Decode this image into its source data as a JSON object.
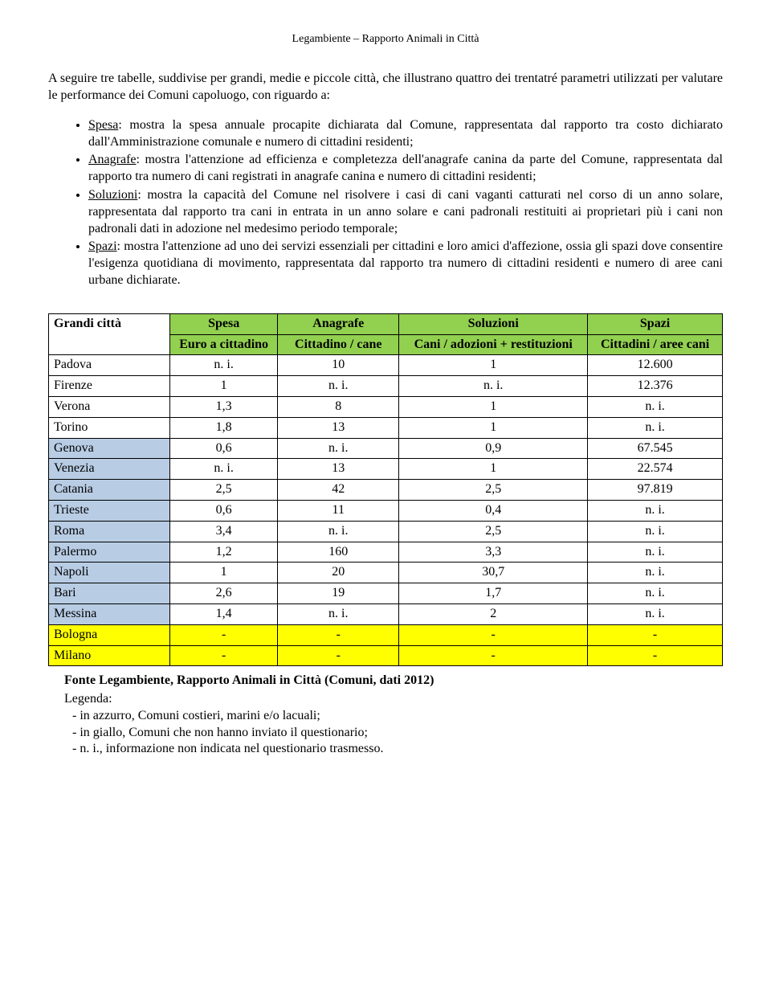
{
  "header": "Legambiente – Rapporto Animali in Città",
  "intro": "A seguire tre tabelle, suddivise per grandi, medie e piccole città, che illustrano quattro dei trentatré parametri utilizzati per valutare le performance dei Comuni capoluogo, con riguardo a:",
  "bullets": [
    {
      "term": "Spesa",
      "text": ": mostra la spesa annuale procapite dichiarata dal Comune, rappresentata dal rapporto tra costo dichiarato dall'Amministrazione comunale e numero di cittadini residenti;"
    },
    {
      "term": "Anagrafe",
      "text": ": mostra l'attenzione ad efficienza e completezza dell'anagrafe canina da parte del Comune, rappresentata dal rapporto tra numero di cani registrati in anagrafe canina e numero di cittadini residenti;"
    },
    {
      "term": "Soluzioni",
      "text": ": mostra la capacità del Comune nel risolvere i casi di cani vaganti catturati nel corso di un anno solare, rappresentata dal rapporto tra cani in entrata in un anno solare e cani padronali restituiti ai proprietari più i cani non padronali dati in adozione nel medesimo periodo temporale;"
    },
    {
      "term": "Spazi",
      "text": ": mostra l'attenzione ad uno dei servizi essenziali per cittadini e loro amici d'affezione, ossia gli spazi dove consentire l'esigenza quotidiana di movimento, rappresentata dal rapporto tra numero di cittadini residenti e numero di aree cani urbane dichiarate."
    }
  ],
  "table": {
    "header_row1": [
      "Grandi città",
      "Spesa",
      "Anagrafe",
      "Soluzioni",
      "Spazi"
    ],
    "header_row2": [
      "Euro a cittadino",
      "Cittadino / cane",
      "Cani / adozioni + restituzioni",
      "Cittadini / aree cani"
    ],
    "col_widths": [
      "18%",
      "16%",
      "18%",
      "28%",
      "20%"
    ],
    "rows": [
      {
        "city": "Padova",
        "vals": [
          "n. i.",
          "10",
          "1",
          "12.600"
        ],
        "blue": false,
        "yellow": false
      },
      {
        "city": "Firenze",
        "vals": [
          "1",
          "n. i.",
          "n. i.",
          "12.376"
        ],
        "blue": false,
        "yellow": false
      },
      {
        "city": "Verona",
        "vals": [
          "1,3",
          "8",
          "1",
          "n. i."
        ],
        "blue": false,
        "yellow": false
      },
      {
        "city": "Torino",
        "vals": [
          "1,8",
          "13",
          "1",
          "n. i."
        ],
        "blue": false,
        "yellow": false
      },
      {
        "city": "Genova",
        "vals": [
          "0,6",
          "n. i.",
          "0,9",
          "67.545"
        ],
        "blue": true,
        "yellow": false
      },
      {
        "city": "Venezia",
        "vals": [
          "n. i.",
          "13",
          "1",
          "22.574"
        ],
        "blue": true,
        "yellow": false
      },
      {
        "city": "Catania",
        "vals": [
          "2,5",
          "42",
          "2,5",
          "97.819"
        ],
        "blue": true,
        "yellow": false
      },
      {
        "city": "Trieste",
        "vals": [
          "0,6",
          "11",
          "0,4",
          "n. i."
        ],
        "blue": true,
        "yellow": false
      },
      {
        "city": "Roma",
        "vals": [
          "3,4",
          "n. i.",
          "2,5",
          "n. i."
        ],
        "blue": true,
        "yellow": false
      },
      {
        "city": "Palermo",
        "vals": [
          "1,2",
          "160",
          "3,3",
          "n. i."
        ],
        "blue": true,
        "yellow": false
      },
      {
        "city": "Napoli",
        "vals": [
          "1",
          "20",
          "30,7",
          "n. i."
        ],
        "blue": true,
        "yellow": false
      },
      {
        "city": "Bari",
        "vals": [
          "2,6",
          "19",
          "1,7",
          "n. i."
        ],
        "blue": true,
        "yellow": false
      },
      {
        "city": "Messina",
        "vals": [
          "1,4",
          "n. i.",
          "2",
          "n. i."
        ],
        "blue": true,
        "yellow": false
      },
      {
        "city": "Bologna",
        "vals": [
          "-",
          "-",
          "-",
          "-"
        ],
        "blue": false,
        "yellow": true
      },
      {
        "city": "Milano",
        "vals": [
          "-",
          "-",
          "-",
          "-"
        ],
        "blue": false,
        "yellow": true
      }
    ],
    "colors": {
      "header_bg": "#92d050",
      "blue_bg": "#b8cce4",
      "yellow_bg": "#ffff00",
      "border": "#000000"
    }
  },
  "source": "Fonte Legambiente, Rapporto Animali in Città (Comuni, dati 2012)",
  "legenda_label": "Legenda:",
  "legenda": [
    "in azzurro, Comuni costieri, marini e/o lacuali;",
    "in giallo, Comuni che non hanno inviato il questionario;",
    "n. i., informazione non indicata nel questionario trasmesso."
  ]
}
